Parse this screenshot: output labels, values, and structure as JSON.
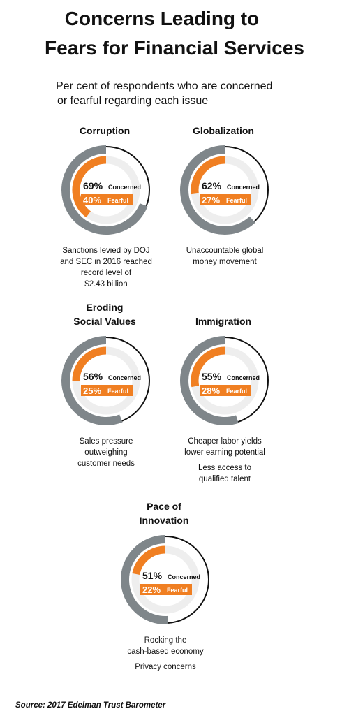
{
  "title": [
    "Concerns Leading to",
    "Fears for Financial Services"
  ],
  "subtitle": [
    "Per cent of respondents who are concerned",
    "or fearful regarding each issue"
  ],
  "chart_data": [
    {
      "type": "gauge",
      "title": [
        "Corruption"
      ],
      "series": [
        {
          "name": "Concerned",
          "value": 69,
          "value_label": "69%",
          "color": "#7f868a"
        },
        {
          "name": "Fearful",
          "value": 40,
          "value_label": "40%",
          "color": "#f07f22"
        }
      ],
      "notes": [
        [
          "Sanctions levied by DOJ",
          "and SEC in 2016 reached",
          "record level of",
          "$2.43 billion"
        ]
      ]
    },
    {
      "type": "gauge",
      "title": [
        "Globalization"
      ],
      "series": [
        {
          "name": "Concerned",
          "value": 62,
          "value_label": "62%",
          "color": "#7f868a"
        },
        {
          "name": "Fearful",
          "value": 27,
          "value_label": "27%",
          "color": "#f07f22"
        }
      ],
      "notes": [
        [
          "Unaccountable global",
          "money movement"
        ]
      ]
    },
    {
      "type": "gauge",
      "title": [
        "Eroding",
        "Social Values"
      ],
      "series": [
        {
          "name": "Concerned",
          "value": 56,
          "value_label": "56%",
          "color": "#7f868a"
        },
        {
          "name": "Fearful",
          "value": 25,
          "value_label": "25%",
          "color": "#f07f22"
        }
      ],
      "notes": [
        [
          "Sales pressure",
          "outweighing",
          "customer needs"
        ]
      ]
    },
    {
      "type": "gauge",
      "title": [
        "Immigration"
      ],
      "series": [
        {
          "name": "Concerned",
          "value": 55,
          "value_label": "55%",
          "color": "#7f868a"
        },
        {
          "name": "Fearful",
          "value": 28,
          "value_label": "28%",
          "color": "#f07f22"
        }
      ],
      "notes": [
        [
          "Cheaper labor yields",
          "lower earning potential"
        ],
        [
          "Less access to",
          "qualified talent"
        ]
      ]
    },
    {
      "type": "gauge",
      "title": [
        "Pace of",
        "Innovation"
      ],
      "series": [
        {
          "name": "Concerned",
          "value": 51,
          "value_label": "51%",
          "color": "#7f868a"
        },
        {
          "name": "Fearful",
          "value": 22,
          "value_label": "22%",
          "color": "#f07f22"
        }
      ],
      "notes": [
        [
          "Rocking the",
          "cash-based economy"
        ],
        [
          "Privacy concerns"
        ]
      ]
    }
  ],
  "source": "Source: 2017 Edelman Trust Barometer"
}
